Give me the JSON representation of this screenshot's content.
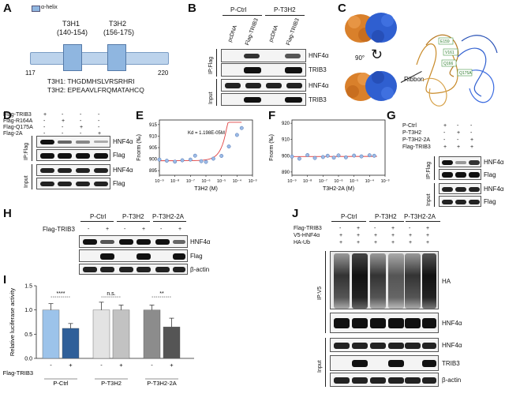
{
  "panels": {
    "A": {
      "label": "A",
      "legend": "α-helix",
      "h1_name": "T3H1",
      "h1_range": "(140-154)",
      "h2_name": "T3H2",
      "h2_range": "(156-175)",
      "start": "117",
      "end": "220",
      "seq1": "T3H1: THGDMHSLVRSRHRI",
      "seq2": "T3H2: EPEAAVLFRQMATAHCQ"
    },
    "B": {
      "label": "B",
      "groups": [
        "P-Ctrl",
        "P-T3H2"
      ],
      "lanes": [
        "pcDNA",
        "Flag-TRIB3",
        "pcDNA",
        "Flag-TRIB3"
      ],
      "ip": "IP:Flag",
      "input": "Input",
      "bands": [
        "HNF4α",
        "TRIB3",
        "HNF4α",
        "TRIB3"
      ]
    },
    "C": {
      "label": "C",
      "rotation": "90°",
      "ribbon": "Ribbon",
      "residues": [
        "E159",
        "V161",
        "Q166",
        "R164",
        "M167",
        "Q175A"
      ]
    },
    "D": {
      "label": "D",
      "rows": [
        "Flag-TRIB3",
        "Flag-R164A",
        "Flag-Q175A",
        "Flag-2A"
      ],
      "signs": [
        [
          "+",
          "-",
          "-",
          "-"
        ],
        [
          "-",
          "+",
          "-",
          "-"
        ],
        [
          "-",
          "-",
          "+",
          "-"
        ],
        [
          "-",
          "-",
          "-",
          "+"
        ]
      ],
      "ip": "IP:Flag",
      "input": "Input",
      "bands": [
        "HNF4α",
        "Flag",
        "HNF4α",
        "Flag"
      ]
    },
    "G": {
      "label": "G",
      "rows": [
        "P-Ctrl",
        "P-T3H2",
        "P-T3H2-2A",
        "Flag-TRIB3"
      ],
      "signs": [
        [
          "+",
          "-",
          "-"
        ],
        [
          "-",
          "+",
          "-"
        ],
        [
          "-",
          "-",
          "+"
        ],
        [
          "+",
          "+",
          "+"
        ]
      ],
      "ip": "IP:Flag",
      "input": "Input",
      "bands": [
        "HNF4α",
        "Flag",
        "HNF4α",
        "Flag"
      ]
    },
    "H": {
      "label": "H",
      "groups": [
        "P-Ctrl",
        "P-T3H2",
        "P-T3H2-2A"
      ],
      "row": "Flag-TRIB3",
      "signs": [
        "-",
        "+",
        "-",
        "+",
        "-",
        "+"
      ],
      "bands": [
        "HNF4α",
        "Flag",
        "β-actin"
      ]
    },
    "J": {
      "label": "J",
      "groups": [
        "P-Ctrl",
        "P-T3H2",
        "P-T3H2-2A"
      ],
      "rows": [
        "Flag-TRIB3",
        "V5-HNF4α",
        "HA-Ub"
      ],
      "signs": [
        [
          "-",
          "+",
          "-",
          "+",
          "-",
          "+"
        ],
        [
          "+",
          "+",
          "+",
          "+",
          "+",
          "+"
        ],
        [
          "+",
          "+",
          "+",
          "+",
          "+",
          "+"
        ]
      ],
      "ip": "IP:V5",
      "input": "Input",
      "bands": [
        "HA",
        "HNF4α",
        "HNF4α",
        "TRIB3",
        "β-actin"
      ]
    }
  },
  "chart_data": [
    {
      "panel": "E",
      "type": "scatter",
      "xlabel": "T3H2 (M)",
      "ylabel": "Fnorm (‰)",
      "xscale": "log",
      "xticks": [
        "10⁻⁹",
        "10⁻⁸",
        "10⁻⁷",
        "10⁻⁶",
        "10⁻⁵",
        "10⁻⁴",
        "10⁻³"
      ],
      "yticks": [
        "895",
        "900",
        "905",
        "910",
        "915"
      ],
      "ylim": [
        893,
        917
      ],
      "annotation": "Kd = 1.198E-05M",
      "x": [
        1e-09,
        3e-09,
        1e-08,
        3e-08,
        1e-07,
        2e-07,
        5e-07,
        1e-06,
        3e-06,
        1e-05,
        3e-05,
        0.0001,
        0.0002
      ],
      "y": [
        899.8,
        899.3,
        898.9,
        899.5,
        899.8,
        901.5,
        899.1,
        898.8,
        900.2,
        901.4,
        905.5,
        910.5,
        913.5
      ],
      "fit": "red curve"
    },
    {
      "panel": "F",
      "type": "scatter",
      "xlabel": "T3H2-2A (M)",
      "ylabel": "Fnorm (‰)",
      "xscale": "log",
      "xticks": [
        "10⁻⁹",
        "10⁻⁸",
        "10⁻⁷",
        "10⁻⁶",
        "10⁻⁵",
        "10⁻⁴",
        "10⁻³"
      ],
      "yticks": [
        "890",
        "900",
        "910",
        "920"
      ],
      "ylim": [
        888,
        922
      ],
      "x": [
        1e-09,
        3e-09,
        1e-08,
        3e-08,
        1e-07,
        2e-07,
        5e-07,
        1e-06,
        3e-06,
        1e-05,
        3e-05,
        0.0001,
        0.0002
      ],
      "y": [
        899.5,
        898.2,
        900.4,
        898.6,
        899.2,
        900.0,
        898.8,
        900.2,
        899.0,
        900.1,
        899.6,
        900.3,
        900.0
      ],
      "fit": "red flat line"
    },
    {
      "panel": "I",
      "type": "bar",
      "ylabel": "Relative luciferase activity",
      "yticks": [
        "0.0",
        "0.5",
        "1.0",
        "1.5"
      ],
      "ylim": [
        0,
        1.5
      ],
      "categories": [
        "-",
        "+",
        "-",
        "+",
        "-",
        "+"
      ],
      "groups": [
        "P-Ctrl",
        "P-T3H2",
        "P-T3H2-2A"
      ],
      "xrow": "Flag-TRIB3",
      "values": [
        1.0,
        0.62,
        1.0,
        1.0,
        1.0,
        0.65
      ],
      "errors": [
        0.13,
        0.1,
        0.16,
        0.1,
        0.1,
        0.18
      ],
      "colors": [
        "#9cc3ea",
        "#2f5f99",
        "#e3e3e3",
        "#c2c2c2",
        "#8c8c8c",
        "#555555"
      ],
      "significance": [
        "****",
        "n.s.",
        "**"
      ]
    }
  ]
}
